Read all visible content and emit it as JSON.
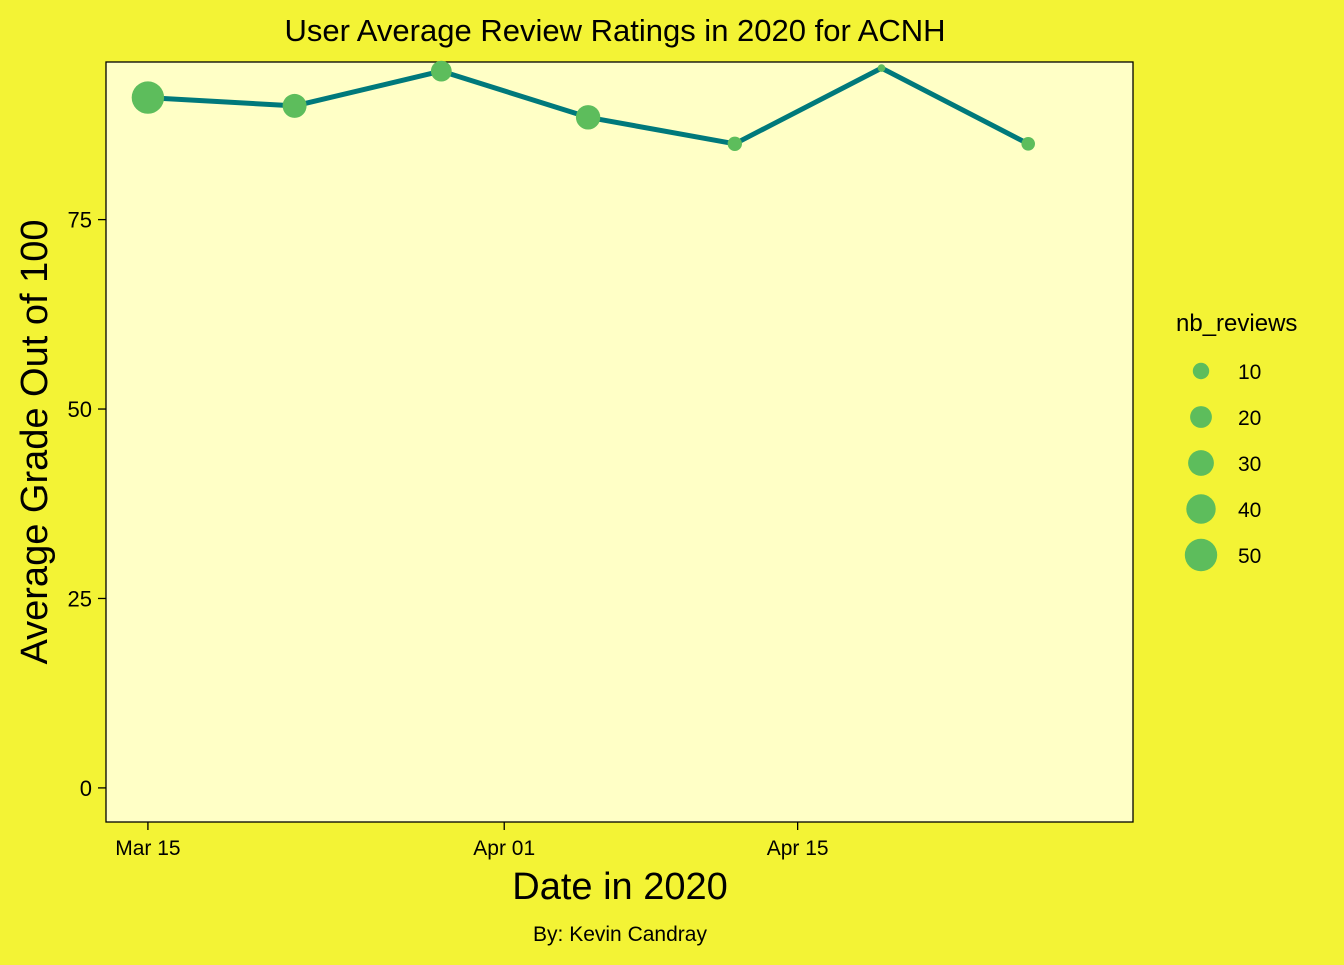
{
  "chart_data": {
    "type": "line",
    "title": "User Average Review Ratings in 2020 for ACNH",
    "xlabel": "Date in 2020",
    "ylabel": "Average Grade Out of 100",
    "caption": "By: Kevin Candray",
    "x_ticks": [
      {
        "date": "2020-03-15",
        "label": "Mar 15"
      },
      {
        "date": "2020-04-01",
        "label": "Apr 01"
      },
      {
        "date": "2020-04-15",
        "label": "Apr 15"
      }
    ],
    "y_ticks": [
      0,
      25,
      50,
      75
    ],
    "xlim": [
      "2020-03-13",
      "2020-05-01"
    ],
    "ylim": [
      -4.5,
      95.8
    ],
    "series": [
      {
        "points": [
          {
            "x": "2020-03-15",
            "y": 91.1,
            "nb_reviews": 50
          },
          {
            "x": "2020-03-22",
            "y": 90.0,
            "nb_reviews": 25
          },
          {
            "x": "2020-03-29",
            "y": 94.6,
            "nb_reviews": 18
          },
          {
            "x": "2020-04-05",
            "y": 88.5,
            "nb_reviews": 26
          },
          {
            "x": "2020-04-12",
            "y": 85.0,
            "nb_reviews": 7
          },
          {
            "x": "2020-04-19",
            "y": 95.0,
            "nb_reviews": 1
          },
          {
            "x": "2020-04-26",
            "y": 85.0,
            "nb_reviews": 6
          }
        ]
      }
    ],
    "size_legend": {
      "title": "nb_reviews",
      "items": [
        10,
        20,
        30,
        40,
        50
      ],
      "size_range": [
        1,
        50
      ]
    },
    "grid": false,
    "legend_position": "right",
    "colors": {
      "background": "#f3f335",
      "panel": "#ffffc6",
      "line": "#00797b",
      "point": "#5dbd5c",
      "axis": "#000000"
    }
  }
}
